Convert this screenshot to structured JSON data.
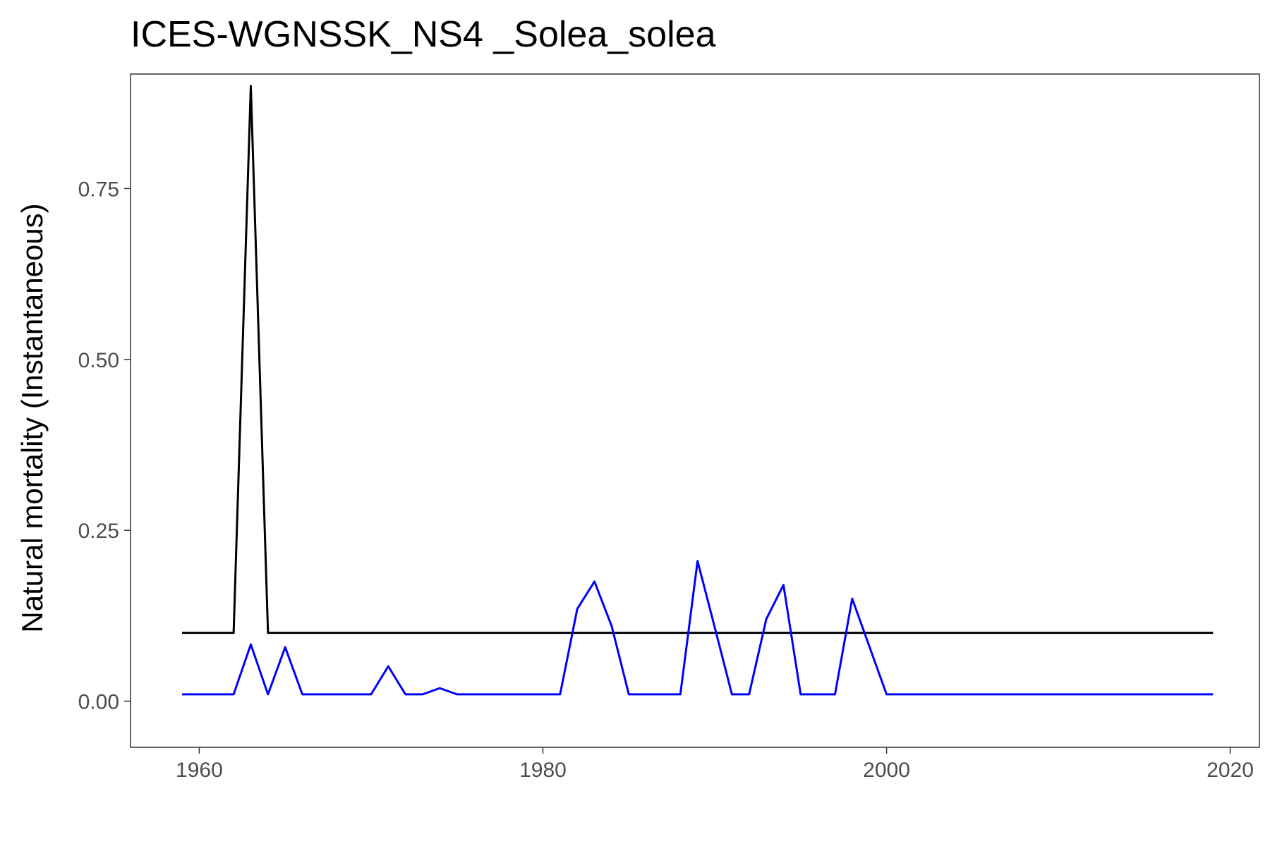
{
  "chart_data": {
    "type": "line",
    "title": "ICES-WGNSSK_NS4 _Solea_solea",
    "xlabel": "",
    "ylabel": "Natural mortality (Instantaneous)",
    "xlim": [
      1956,
      2021.7
    ],
    "ylim": [
      -0.0675,
      0.9175
    ],
    "x_ticks": [
      1960,
      1980,
      2000,
      2020
    ],
    "x_tick_labels": [
      "1960",
      "1980",
      "2000",
      "2020"
    ],
    "y_ticks": [
      0,
      0.25,
      0.5,
      0.75
    ],
    "y_tick_labels": [
      "0.00",
      "0.25",
      "0.50",
      "0.75"
    ],
    "grid": false,
    "series": [
      {
        "color": "#000000",
        "x": [
          1959,
          1962,
          1963,
          1964,
          2019
        ],
        "y": [
          0.1,
          0.1,
          0.9,
          0.1,
          0.1
        ]
      },
      {
        "color": "#0000ff",
        "x": [
          1959,
          1962,
          1963,
          1964,
          1965,
          1966,
          1970,
          1971,
          1972,
          1973,
          1974,
          1975,
          1981,
          1982,
          1983,
          1984,
          1985,
          1988,
          1989,
          1990,
          1991,
          1992,
          1993,
          1994,
          1995,
          1997,
          1998,
          1999,
          2000,
          2019
        ],
        "y": [
          0.01,
          0.01,
          0.083,
          0.01,
          0.079,
          0.01,
          0.01,
          0.051,
          0.01,
          0.01,
          0.019,
          0.01,
          0.01,
          0.135,
          0.175,
          0.11,
          0.01,
          0.01,
          0.205,
          0.108,
          0.01,
          0.01,
          0.12,
          0.17,
          0.01,
          0.01,
          0.15,
          0.08,
          0.01,
          0.01
        ]
      }
    ]
  }
}
